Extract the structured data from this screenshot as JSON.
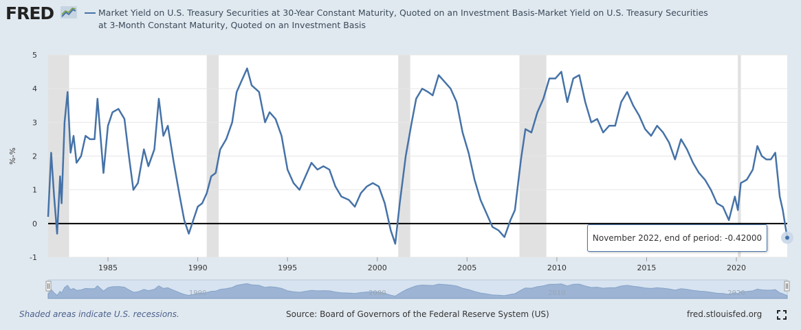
{
  "header": {
    "logo_text": "FRED",
    "legend": "Market Yield on U.S. Treasury Securities at 30-Year Constant Maturity, Quoted on an Investment Basis-Market Yield on U.S. Treasury Securities at 3-Month Constant Maturity, Quoted on an Investment Basis"
  },
  "tooltip": {
    "text": "November 2022, end of period: -0.42000"
  },
  "footer": {
    "recession_note": "Shaded areas indicate U.S. recessions.",
    "source": "Source: Board of Governors of the Federal Reserve System (US)",
    "site": "fred.stlouisfed.org"
  },
  "colors": {
    "line": "#4572a7",
    "recession": "#e1e1e1",
    "background": "#e1e9f0",
    "plot": "#ffffff"
  },
  "chart_data": {
    "type": "line",
    "title": "",
    "xlabel": "",
    "ylabel": "%-%",
    "xlim": [
      "1981-09",
      "2022-11"
    ],
    "ylim": [
      -1,
      5
    ],
    "yticks": [
      -1,
      0,
      1,
      2,
      3,
      4,
      5
    ],
    "xticks": [
      "1985",
      "1990",
      "1995",
      "2000",
      "2005",
      "2010",
      "2015",
      "2020"
    ],
    "navigator_ticks": [
      "1990",
      "2000",
      "2010",
      "2020"
    ],
    "grid": "horizontal",
    "zero_line": true,
    "recessions": [
      [
        "1981-07",
        "1982-11"
      ],
      [
        "1990-07",
        "1991-03"
      ],
      [
        "2001-03",
        "2001-11"
      ],
      [
        "2007-12",
        "2009-06"
      ],
      [
        "2020-02",
        "2020-04"
      ]
    ],
    "series": [
      {
        "name": "Market Yield on U.S. Treasury Securities at 30-Year Constant Maturity, Quoted on an Investment Basis-Market Yield on U.S. Treasury Securities at 3-Month Constant Maturity, Quoted on an Investment Basis",
        "points": [
          [
            "1981-09",
            0.2
          ],
          [
            "1981-11",
            2.1
          ],
          [
            "1982-01",
            0.8
          ],
          [
            "1982-03",
            -0.3
          ],
          [
            "1982-05",
            1.4
          ],
          [
            "1982-06",
            0.6
          ],
          [
            "1982-08",
            3.0
          ],
          [
            "1982-10",
            3.9
          ],
          [
            "1982-12",
            2.1
          ],
          [
            "1983-02",
            2.6
          ],
          [
            "1983-04",
            1.8
          ],
          [
            "1983-07",
            2.0
          ],
          [
            "1983-10",
            2.6
          ],
          [
            "1984-01",
            2.5
          ],
          [
            "1984-04",
            2.5
          ],
          [
            "1984-06",
            3.7
          ],
          [
            "1984-10",
            1.5
          ],
          [
            "1985-01",
            2.9
          ],
          [
            "1985-04",
            3.3
          ],
          [
            "1985-08",
            3.4
          ],
          [
            "1985-12",
            3.1
          ],
          [
            "1986-03",
            2.0
          ],
          [
            "1986-06",
            1.0
          ],
          [
            "1986-09",
            1.2
          ],
          [
            "1987-01",
            2.2
          ],
          [
            "1987-04",
            1.7
          ],
          [
            "1987-08",
            2.2
          ],
          [
            "1987-11",
            3.7
          ],
          [
            "1988-02",
            2.6
          ],
          [
            "1988-05",
            2.9
          ],
          [
            "1988-09",
            1.8
          ],
          [
            "1989-01",
            0.8
          ],
          [
            "1989-04",
            0.1
          ],
          [
            "1989-07",
            -0.3
          ],
          [
            "1989-10",
            0.1
          ],
          [
            "1990-01",
            0.5
          ],
          [
            "1990-04",
            0.6
          ],
          [
            "1990-07",
            0.9
          ],
          [
            "1990-10",
            1.4
          ],
          [
            "1991-01",
            1.5
          ],
          [
            "1991-04",
            2.2
          ],
          [
            "1991-08",
            2.5
          ],
          [
            "1991-12",
            3.0
          ],
          [
            "1992-03",
            3.9
          ],
          [
            "1992-07",
            4.3
          ],
          [
            "1992-10",
            4.6
          ],
          [
            "1993-01",
            4.1
          ],
          [
            "1993-06",
            3.9
          ],
          [
            "1993-10",
            3.0
          ],
          [
            "1994-01",
            3.3
          ],
          [
            "1994-05",
            3.1
          ],
          [
            "1994-09",
            2.6
          ],
          [
            "1995-01",
            1.6
          ],
          [
            "1995-05",
            1.2
          ],
          [
            "1995-09",
            1.0
          ],
          [
            "1996-01",
            1.4
          ],
          [
            "1996-05",
            1.8
          ],
          [
            "1996-09",
            1.6
          ],
          [
            "1997-01",
            1.7
          ],
          [
            "1997-05",
            1.6
          ],
          [
            "1997-09",
            1.1
          ],
          [
            "1998-01",
            0.8
          ],
          [
            "1998-06",
            0.7
          ],
          [
            "1998-10",
            0.5
          ],
          [
            "1999-02",
            0.9
          ],
          [
            "1999-06",
            1.1
          ],
          [
            "1999-10",
            1.2
          ],
          [
            "2000-02",
            1.1
          ],
          [
            "2000-06",
            0.6
          ],
          [
            "2000-10",
            -0.2
          ],
          [
            "2001-01",
            -0.6
          ],
          [
            "2001-04",
            0.6
          ],
          [
            "2001-08",
            2.0
          ],
          [
            "2001-12",
            3.0
          ],
          [
            "2002-03",
            3.7
          ],
          [
            "2002-07",
            4.0
          ],
          [
            "2002-11",
            3.9
          ],
          [
            "2003-02",
            3.8
          ],
          [
            "2003-06",
            4.4
          ],
          [
            "2003-10",
            4.2
          ],
          [
            "2004-02",
            4.0
          ],
          [
            "2004-06",
            3.6
          ],
          [
            "2004-10",
            2.7
          ],
          [
            "2005-02",
            2.1
          ],
          [
            "2005-06",
            1.3
          ],
          [
            "2005-10",
            0.7
          ],
          [
            "2006-02",
            0.3
          ],
          [
            "2006-06",
            -0.1
          ],
          [
            "2006-10",
            -0.2
          ],
          [
            "2007-02",
            -0.4
          ],
          [
            "2007-06",
            0.1
          ],
          [
            "2007-09",
            0.4
          ],
          [
            "2008-01",
            1.9
          ],
          [
            "2008-04",
            2.8
          ],
          [
            "2008-08",
            2.7
          ],
          [
            "2008-12",
            3.3
          ],
          [
            "2009-04",
            3.7
          ],
          [
            "2009-08",
            4.3
          ],
          [
            "2009-12",
            4.3
          ],
          [
            "2010-04",
            4.5
          ],
          [
            "2010-08",
            3.6
          ],
          [
            "2010-12",
            4.3
          ],
          [
            "2011-04",
            4.4
          ],
          [
            "2011-08",
            3.6
          ],
          [
            "2011-12",
            3.0
          ],
          [
            "2012-04",
            3.1
          ],
          [
            "2012-08",
            2.7
          ],
          [
            "2012-12",
            2.9
          ],
          [
            "2013-04",
            2.9
          ],
          [
            "2013-08",
            3.6
          ],
          [
            "2013-12",
            3.9
          ],
          [
            "2014-04",
            3.5
          ],
          [
            "2014-08",
            3.2
          ],
          [
            "2014-12",
            2.8
          ],
          [
            "2015-04",
            2.6
          ],
          [
            "2015-08",
            2.9
          ],
          [
            "2015-12",
            2.7
          ],
          [
            "2016-04",
            2.4
          ],
          [
            "2016-08",
            1.9
          ],
          [
            "2016-12",
            2.5
          ],
          [
            "2017-04",
            2.2
          ],
          [
            "2017-08",
            1.8
          ],
          [
            "2017-12",
            1.5
          ],
          [
            "2018-04",
            1.3
          ],
          [
            "2018-08",
            1.0
          ],
          [
            "2018-12",
            0.6
          ],
          [
            "2019-04",
            0.5
          ],
          [
            "2019-08",
            0.1
          ],
          [
            "2019-12",
            0.8
          ],
          [
            "2020-02",
            0.4
          ],
          [
            "2020-04",
            1.2
          ],
          [
            "2020-08",
            1.3
          ],
          [
            "2020-12",
            1.6
          ],
          [
            "2021-03",
            2.3
          ],
          [
            "2021-06",
            2.0
          ],
          [
            "2021-09",
            1.9
          ],
          [
            "2021-12",
            1.9
          ],
          [
            "2022-03",
            2.1
          ],
          [
            "2022-06",
            0.8
          ],
          [
            "2022-08",
            0.4
          ],
          [
            "2022-11",
            -0.42
          ]
        ]
      }
    ]
  }
}
